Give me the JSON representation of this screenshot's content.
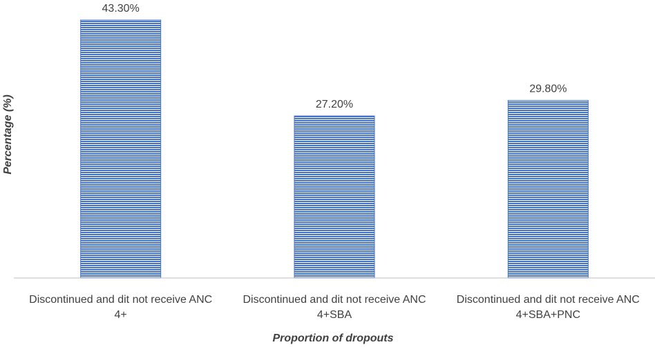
{
  "chart_data": {
    "type": "bar",
    "categories": [
      [
        "Discontinued and dit not receive ANC",
        "4+"
      ],
      [
        "Discontinued and dit not receive ANC",
        "4+SBA"
      ],
      [
        "Discontinued and dit not receive ANC",
        "4+SBA+PNC"
      ]
    ],
    "values": [
      43.3,
      27.2,
      29.8
    ],
    "data_labels": [
      "43.30%",
      "27.20%",
      "29.80%"
    ],
    "xlabel": "Proportion of dropouts",
    "ylabel": "Percentage (%)",
    "ylim": [
      0,
      43.3
    ],
    "grid": false,
    "legend": "none",
    "bar_color": "#4472C4",
    "bar_stripe_color": "#ffffff"
  }
}
